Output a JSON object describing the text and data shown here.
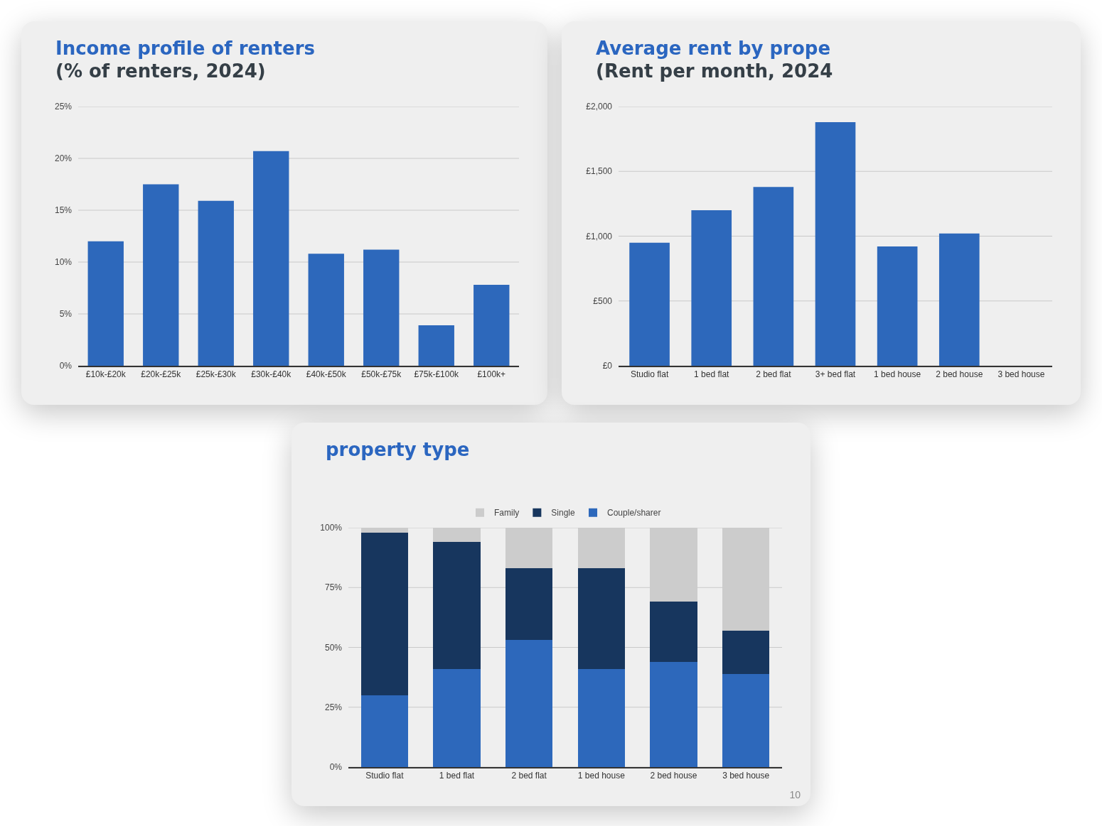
{
  "chart_data": [
    {
      "type": "bar",
      "title": "Income profile of renters",
      "subtitle": "(% of renters, 2024)",
      "categories": [
        "£10k-£20k",
        "£20k-£25k",
        "£25k-£30k",
        "£30k-£40k",
        "£40k-£50k",
        "£50k-£75k",
        "£75k-£100k",
        "£100k+"
      ],
      "values": [
        12,
        17.5,
        15.9,
        20.7,
        10.8,
        11.2,
        3.9,
        7.8
      ],
      "color": "#2d68bb",
      "ylim": [
        0,
        25
      ],
      "yticks": [
        {
          "value": 0,
          "label": "0%"
        },
        {
          "value": 5,
          "label": "5%"
        },
        {
          "value": 10,
          "label": "10%"
        },
        {
          "value": 15,
          "label": "15%"
        },
        {
          "value": 20,
          "label": "20%"
        },
        {
          "value": 25,
          "label": "25%"
        }
      ],
      "grid": "y"
    },
    {
      "type": "bar",
      "title": "Average rent by prope",
      "subtitle": "(Rent per month, 2024",
      "categories": [
        "Studio flat",
        "1 bed flat",
        "2 bed flat",
        "3+ bed flat",
        "1 bed house",
        "2 bed house",
        "3 bed house"
      ],
      "values": [
        950,
        1200,
        1380,
        1880,
        920,
        1020,
        null
      ],
      "color": "#2d68bb",
      "ylim": [
        0,
        2000
      ],
      "yticks": [
        {
          "value": 0,
          "label": "£0"
        },
        {
          "value": 500,
          "label": "£500"
        },
        {
          "value": 1000,
          "label": "£1,000"
        },
        {
          "value": 1500,
          "label": "£1,500"
        },
        {
          "value": 2000,
          "label": "£2,000"
        }
      ],
      "grid": "y"
    },
    {
      "type": "bar",
      "title": "property type",
      "categories": [
        "Studio flat",
        "1 bed flat",
        "2 bed flat",
        "1 bed house",
        "2 bed house",
        "3 bed house"
      ],
      "series": [
        {
          "name": "Couple/sharer",
          "color": "#2d68bb",
          "values": [
            30,
            41,
            53,
            41,
            44,
            39
          ]
        },
        {
          "name": "Single",
          "color": "#17365e",
          "values": [
            68,
            53,
            30,
            42,
            25,
            18
          ]
        },
        {
          "name": "Family",
          "color": "#cccccc",
          "values": [
            2,
            6,
            17,
            17,
            31,
            43
          ]
        }
      ],
      "stacked": true,
      "ylim": [
        0,
        100
      ],
      "yticks": [
        {
          "value": 0,
          "label": "0%"
        },
        {
          "value": 25,
          "label": "25%"
        },
        {
          "value": 50,
          "label": "50%"
        },
        {
          "value": 75,
          "label": "75%"
        },
        {
          "value": 100,
          "label": "100%"
        }
      ],
      "grid": "y",
      "legend": "top",
      "annotations": [
        "10"
      ]
    }
  ]
}
